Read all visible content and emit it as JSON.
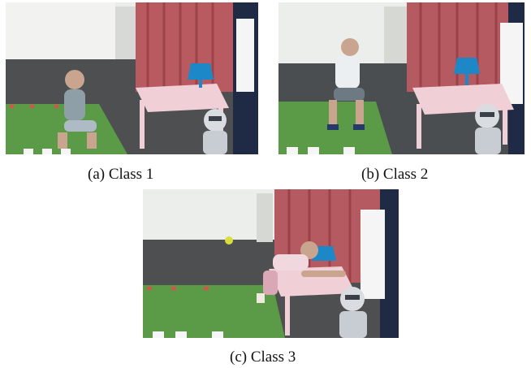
{
  "figure": {
    "panels": [
      {
        "caption": "(a) Class 1",
        "scene": "photo-child-kneeling-on-mat-near-table-and-robot"
      },
      {
        "caption": "(b) Class 2",
        "scene": "photo-child-sitting-on-stool-near-table-and-robot"
      },
      {
        "caption": "(c) Class 3",
        "scene": "photo-child-leaning-on-table-reaching-toward-robot"
      }
    ]
  }
}
